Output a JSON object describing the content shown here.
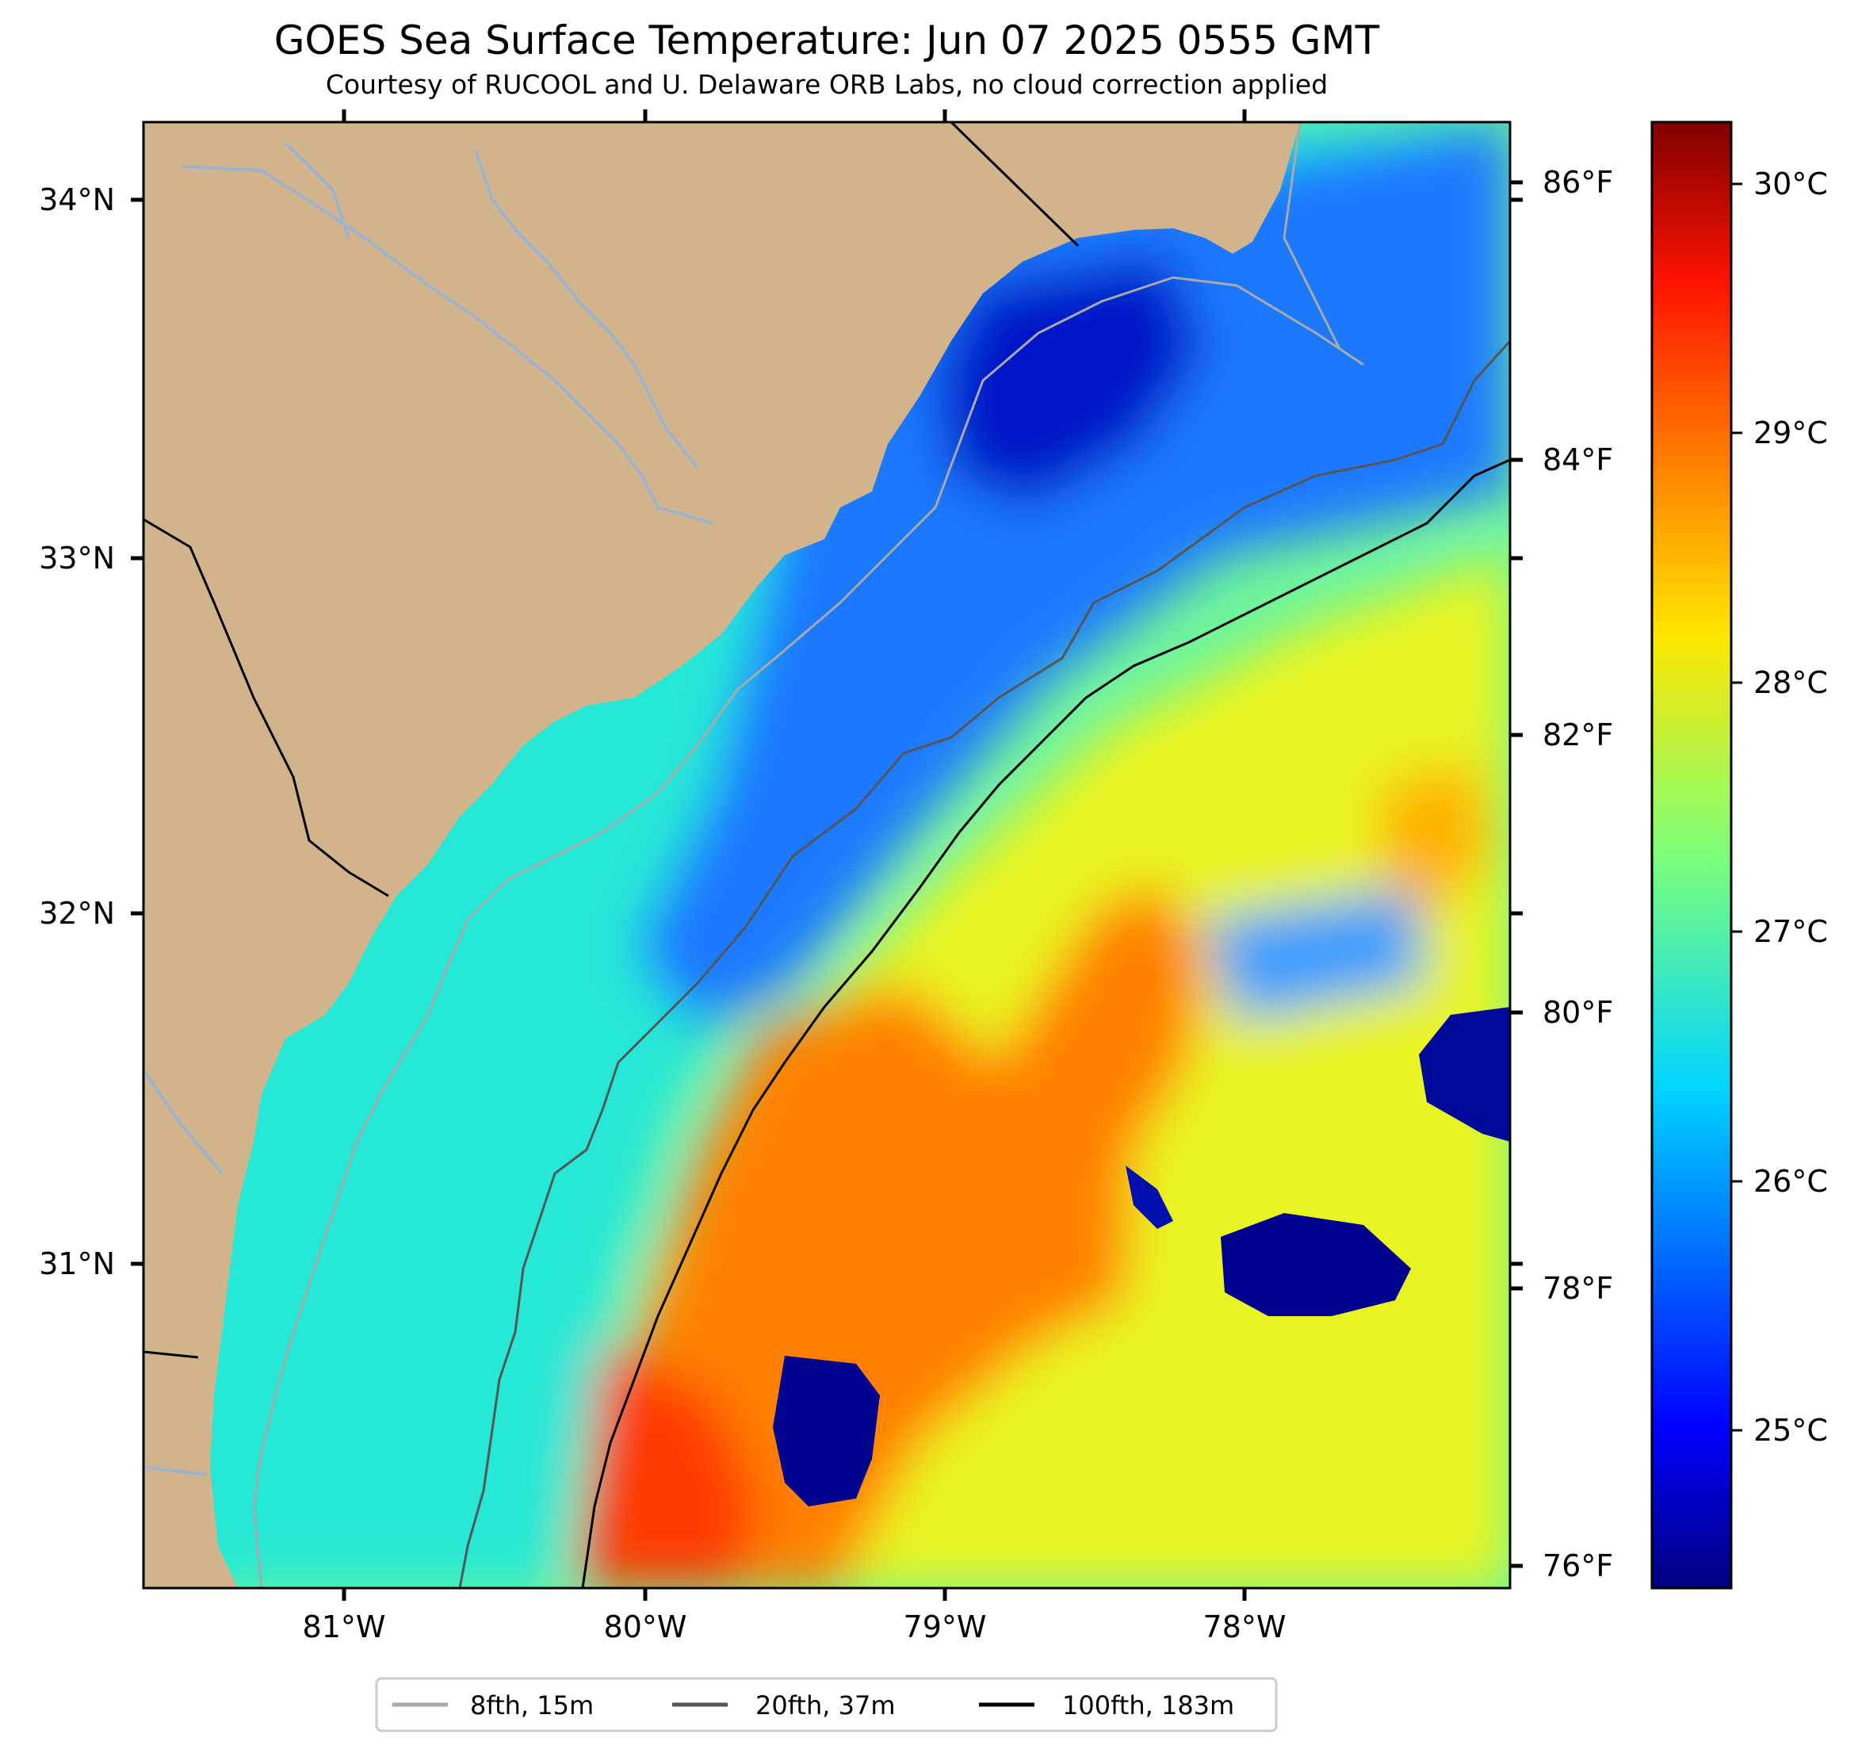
{
  "header": {
    "title": "GOES Sea Surface Temperature: Jun 07 2025 0555 GMT",
    "subtitle": "Courtesy of RUCOOL and U. Delaware ORB Labs, no cloud correction applied"
  },
  "map": {
    "lat_labels": [
      "34°N",
      "33°N",
      "32°N",
      "31°N"
    ],
    "lon_labels": [
      "81°W",
      "80°W",
      "79°W",
      "78°W"
    ],
    "fahrenheit_labels": [
      "86°F",
      "84°F",
      "82°F",
      "80°F",
      "78°F",
      "76°F"
    ],
    "land_color": "#d2b48c"
  },
  "colorbar": {
    "labels": [
      "30°C",
      "29°C",
      "28°C",
      "27°C",
      "26°C",
      "25°C"
    ],
    "colormap": "jet"
  },
  "legend": {
    "items": [
      {
        "label": "8fth, 15m",
        "color": "#aaaaaa"
      },
      {
        "label": "20fth, 37m",
        "color": "#555555"
      },
      {
        "label": "100fth, 183m",
        "color": "#000000"
      }
    ]
  }
}
